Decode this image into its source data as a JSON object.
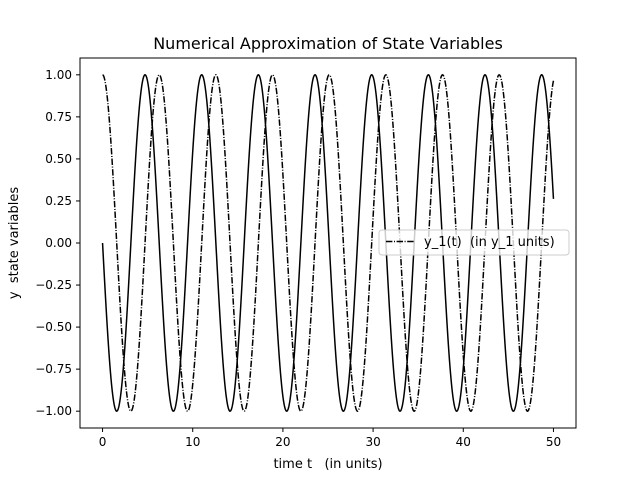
{
  "chart_data": {
    "type": "line",
    "title": "Numerical Approximation of State Variables",
    "xlabel": "time t   (in units)",
    "ylabel": "y  state variables",
    "xlim": [
      -2.5,
      52.5
    ],
    "ylim": [
      -1.1,
      1.1
    ],
    "xticks": [
      0,
      10,
      20,
      30,
      40,
      50
    ],
    "yticks": [
      -1.0,
      -0.75,
      -0.5,
      -0.25,
      0.0,
      0.25,
      0.5,
      0.75,
      1.0
    ],
    "xtick_labels": [
      "0",
      "10",
      "20",
      "30",
      "40",
      "50"
    ],
    "ytick_labels": [
      "−1.00",
      "−0.75",
      "−0.50",
      "−0.25",
      "0.00",
      "0.25",
      "0.50",
      "0.75",
      "1.00"
    ],
    "grid": false,
    "legend": {
      "placement": "center-right",
      "entries": [
        "y_1(t)  (in y_1 units)"
      ]
    },
    "series": [
      {
        "label": "",
        "style": "solid",
        "color": "#000000",
        "function": "-sin(t)",
        "t_range": [
          0,
          50
        ]
      },
      {
        "label": "y_1(t)  (in y_1 units)",
        "style": "dashdot",
        "color": "#000000",
        "function": "cos(t)",
        "t_range": [
          0,
          50
        ]
      }
    ]
  }
}
